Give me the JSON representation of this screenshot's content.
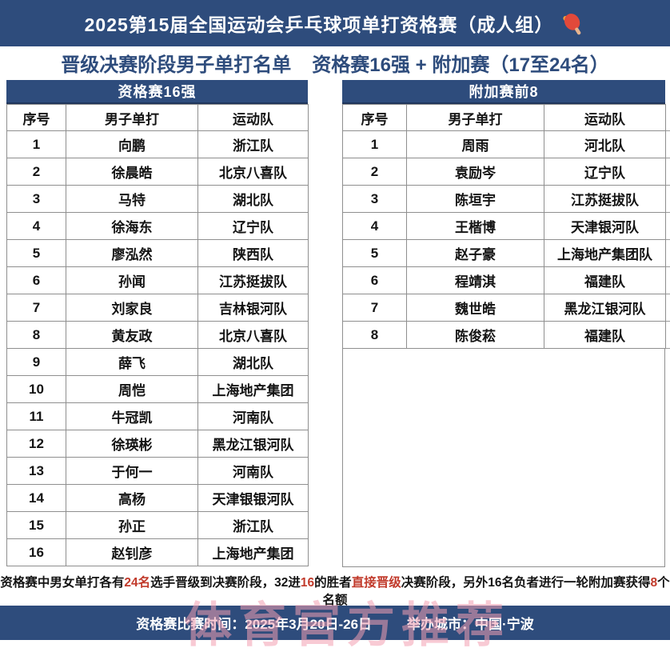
{
  "header": {
    "title": "2025第15届全国运动会乒乓球项单打资格赛（成人组）"
  },
  "subtitle": {
    "part1": "晋级决赛阶段男子单打名单",
    "part2": "资格赛16强 + 附加赛（17至24名）"
  },
  "tables": [
    {
      "title": "资格赛16强",
      "columns": [
        "序号",
        "男子单打",
        "运动队"
      ],
      "rows": [
        [
          "1",
          "向鹏",
          "浙江队"
        ],
        [
          "2",
          "徐晨皓",
          "北京八喜队"
        ],
        [
          "3",
          "马特",
          "湖北队"
        ],
        [
          "4",
          "徐海东",
          "辽宁队"
        ],
        [
          "5",
          "廖泓然",
          "陕西队"
        ],
        [
          "6",
          "孙闻",
          "江苏挺拔队"
        ],
        [
          "7",
          "刘家良",
          "吉林银河队"
        ],
        [
          "8",
          "黄友政",
          "北京八喜队"
        ],
        [
          "9",
          "薛飞",
          "湖北队"
        ],
        [
          "10",
          "周恺",
          "上海地产集团"
        ],
        [
          "11",
          "牛冠凯",
          "河南队"
        ],
        [
          "12",
          "徐瑛彬",
          "黑龙江银河队"
        ],
        [
          "13",
          "于何一",
          "河南队"
        ],
        [
          "14",
          "高杨",
          "天津银银河队"
        ],
        [
          "15",
          "孙正",
          "浙江队"
        ],
        [
          "16",
          "赵钊彦",
          "上海地产集团"
        ]
      ]
    },
    {
      "title": "附加赛前8",
      "columns": [
        "序号",
        "男子单打",
        "运动队"
      ],
      "rows": [
        [
          "1",
          "周雨",
          "河北队"
        ],
        [
          "2",
          "袁励岑",
          "辽宁队"
        ],
        [
          "3",
          "陈垣宇",
          "江苏挺拔队"
        ],
        [
          "4",
          "王楷博",
          "天津银河队"
        ],
        [
          "5",
          "赵子豪",
          "上海地产集团队"
        ],
        [
          "6",
          "程靖淇",
          "福建队"
        ],
        [
          "7",
          "魏世皓",
          "黑龙江银河队"
        ],
        [
          "8",
          "陈俊菘",
          "福建队"
        ]
      ]
    }
  ],
  "note": {
    "segments": [
      {
        "text": "资格赛中男女单打各有",
        "color": "black"
      },
      {
        "text": "24名",
        "color": "red"
      },
      {
        "text": "选手晋级到决赛阶段，32进",
        "color": "black"
      },
      {
        "text": "16",
        "color": "red"
      },
      {
        "text": "的胜者",
        "color": "black"
      },
      {
        "text": "直接晋级",
        "color": "red"
      },
      {
        "text": "决赛阶段，另外16名负者进行一轮附加赛获得",
        "color": "black"
      },
      {
        "text": "8",
        "color": "red"
      },
      {
        "text": "个名额",
        "color": "black"
      }
    ]
  },
  "footer": {
    "time_label": "资格赛比赛时间：2025年3月20日-26日",
    "city_label": "举办城市：中国·宁波"
  },
  "watermark": "体育官方推荐",
  "colors": {
    "navy": "#2e4c7c",
    "navy_dark_edge": "#20365c",
    "highlight_red": "#c13a2b",
    "grid_border": "#8f8f8f",
    "watermark_pink": "#f29eb0"
  }
}
